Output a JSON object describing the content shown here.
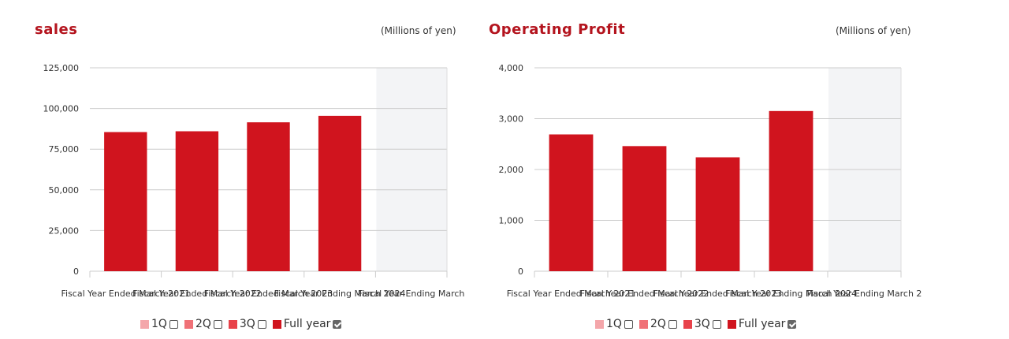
{
  "charts": [
    {
      "title": "sales",
      "unit": "(Millions of yen)",
      "legend": [
        {
          "label": "1Q",
          "color": "#f4a6aa",
          "checked": false
        },
        {
          "label": "2Q",
          "color": "#f07177",
          "checked": false
        },
        {
          "label": "3Q",
          "color": "#e8424a",
          "checked": false
        },
        {
          "label": "Full year",
          "color": "#d0141e",
          "checked": true
        }
      ]
    },
    {
      "title": "Operating Profit",
      "unit": "(Millions of yen)",
      "legend": [
        {
          "label": "1Q",
          "color": "#f4a6aa",
          "checked": false
        },
        {
          "label": "2Q",
          "color": "#f07177",
          "checked": false
        },
        {
          "label": "3Q",
          "color": "#e8424a",
          "checked": false
        },
        {
          "label": "Full year",
          "color": "#d0141e",
          "checked": true
        }
      ]
    }
  ],
  "chart_data": [
    {
      "type": "bar",
      "title": "sales",
      "unit": "(Millions of yen)",
      "categories": [
        "Fiscal Year Ended March 2021",
        "Fiscal Year Ended March 2022",
        "Fiscal Year Ended March 2023",
        "Fiscal Year Ending March 2024",
        "Fiscal Year Ending March"
      ],
      "series": [
        {
          "name": "Full year",
          "values": [
            85500,
            86000,
            91500,
            95500,
            null
          ],
          "color": "#d0141e"
        }
      ],
      "ylim": [
        0,
        125000
      ],
      "yticks": [
        0,
        25000,
        50000,
        75000,
        100000,
        125000
      ],
      "ytick_labels": [
        "0",
        "25,000",
        "50,000",
        "75,000",
        "100,000",
        "125,000"
      ],
      "highlight_category": "Fiscal Year Ending March",
      "grid": true,
      "legend_position": "bottom"
    },
    {
      "type": "bar",
      "title": "Operating Profit",
      "unit": "(Millions of yen)",
      "categories": [
        "Fiscal Year Ended March 2021",
        "Fiscal Year Ended March 2022",
        "Fiscal Year Ended March 2023",
        "Fiscal Year Ending March 2024",
        "Fiscal Year Ending March 2"
      ],
      "series": [
        {
          "name": "Full year",
          "values": [
            2690,
            2460,
            2240,
            3150,
            null
          ],
          "color": "#d0141e"
        }
      ],
      "ylim": [
        0,
        4000
      ],
      "yticks": [
        0,
        1000,
        2000,
        3000,
        4000
      ],
      "ytick_labels": [
        "0",
        "1,000",
        "2,000",
        "3,000",
        "4,000"
      ],
      "highlight_category": "Fiscal Year Ending March 2",
      "grid": true,
      "legend_position": "bottom"
    }
  ]
}
